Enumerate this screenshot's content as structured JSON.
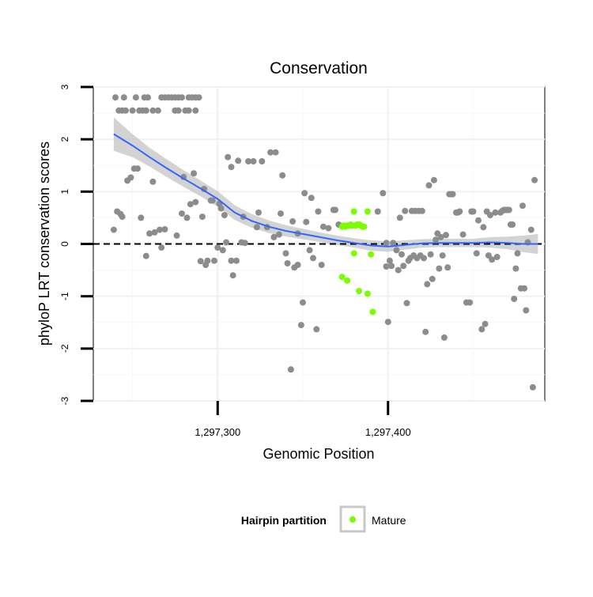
{
  "chart_data": {
    "type": "scatter",
    "title": "Conservation",
    "xlabel": "Genomic Position",
    "ylabel": "phyloP LRT conservation scores",
    "xlim": [
      1297227,
      1297492
    ],
    "ylim": [
      -3,
      3
    ],
    "x_ticks": [
      {
        "value": 1297300,
        "label": "1,297,300"
      },
      {
        "value": 1297400,
        "label": "1,297,400"
      }
    ],
    "y_ticks": [
      {
        "value": -3,
        "label": "-3"
      },
      {
        "value": -2,
        "label": "-2"
      },
      {
        "value": -1,
        "label": "-1"
      },
      {
        "value": 0,
        "label": "0"
      },
      {
        "value": 1,
        "label": "1"
      },
      {
        "value": 2,
        "label": "2"
      },
      {
        "value": 3,
        "label": "3"
      }
    ],
    "grid": true,
    "reference_line": {
      "y": 0,
      "style": "dashed"
    },
    "legend": {
      "title": "Hairpin partition",
      "position": "bottom",
      "entries": [
        {
          "label": "Mature",
          "color": "#7cfc00"
        }
      ]
    },
    "colors": {
      "other": "#8c8c8c",
      "mature": "#7cfc00",
      "smooth": "#3366ff",
      "band": "#c8c8c8"
    },
    "series": [
      {
        "name": "",
        "color": "#8c8c8c",
        "points": [
          [
            1297240,
            2.8
          ],
          [
            1297245,
            2.8
          ],
          [
            1297252,
            2.8
          ],
          [
            1297257,
            2.8
          ],
          [
            1297259,
            2.8
          ],
          [
            1297267,
            2.8
          ],
          [
            1297269,
            2.8
          ],
          [
            1297271,
            2.8
          ],
          [
            1297273,
            2.8
          ],
          [
            1297275,
            2.8
          ],
          [
            1297277,
            2.8
          ],
          [
            1297279,
            2.8
          ],
          [
            1297283,
            2.8
          ],
          [
            1297285,
            2.8
          ],
          [
            1297287,
            2.8
          ],
          [
            1297289,
            2.8
          ],
          [
            1297242,
            2.55
          ],
          [
            1297244,
            2.55
          ],
          [
            1297246,
            2.55
          ],
          [
            1297250,
            2.55
          ],
          [
            1297254,
            2.55
          ],
          [
            1297256,
            2.55
          ],
          [
            1297258,
            2.55
          ],
          [
            1297262,
            2.55
          ],
          [
            1297265,
            2.55
          ],
          [
            1297275,
            2.55
          ],
          [
            1297277,
            2.55
          ],
          [
            1297281,
            2.55
          ],
          [
            1297283,
            2.55
          ],
          [
            1297287,
            2.55
          ],
          [
            1297239,
            0.27
          ],
          [
            1297241,
            0.62
          ],
          [
            1297243,
            0.57
          ],
          [
            1297244,
            0.52
          ],
          [
            1297247,
            1.21
          ],
          [
            1297249,
            1.27
          ],
          [
            1297251,
            1.44
          ],
          [
            1297253,
            1.44
          ],
          [
            1297255,
            0.5
          ],
          [
            1297258,
            -0.23
          ],
          [
            1297260,
            0.2
          ],
          [
            1297262,
            1.19
          ],
          [
            1297263,
            0.22
          ],
          [
            1297266,
            0.27
          ],
          [
            1297267,
            -0.07
          ],
          [
            1297269,
            0.28
          ],
          [
            1297276,
            0.16
          ],
          [
            1297279,
            0.58
          ],
          [
            1297280,
            1.28
          ],
          [
            1297282,
            0.5
          ],
          [
            1297284,
            0.76
          ],
          [
            1297286,
            1.35
          ],
          [
            1297287,
            0.8
          ],
          [
            1297290,
            -0.33
          ],
          [
            1297291,
            0.52
          ],
          [
            1297292,
            1.05
          ],
          [
            1297293,
            -0.4
          ],
          [
            1297294,
            -0.32
          ],
          [
            1297296,
            0.83
          ],
          [
            1297297,
            0.83
          ],
          [
            1297298,
            -0.32
          ],
          [
            1297300,
            -0.07
          ],
          [
            1297301,
            0.77
          ],
          [
            1297302,
            0.68
          ],
          [
            1297303,
            -0.12
          ],
          [
            1297304,
            0.55
          ],
          [
            1297305,
            0.03
          ],
          [
            1297306,
            1.66
          ],
          [
            1297308,
            -0.32
          ],
          [
            1297308,
            1.47
          ],
          [
            1297309,
            -0.6
          ],
          [
            1297311,
            -0.32
          ],
          [
            1297312,
            1.59
          ],
          [
            1297314,
            0.03
          ],
          [
            1297315,
            0.52
          ],
          [
            1297316,
            0.02
          ],
          [
            1297318,
            1.58
          ],
          [
            1297321,
            1.58
          ],
          [
            1297323,
            0.32
          ],
          [
            1297324,
            0.6
          ],
          [
            1297326,
            1.58
          ],
          [
            1297329,
            0.32
          ],
          [
            1297331,
            1.75
          ],
          [
            1297333,
            0.13
          ],
          [
            1297334,
            1.75
          ],
          [
            1297336,
            0.18
          ],
          [
            1297337,
            0.58
          ],
          [
            1297338,
            1.31
          ],
          [
            1297340,
            -0.18
          ],
          [
            1297341,
            -0.37
          ],
          [
            1297343,
            -2.4
          ],
          [
            1297344,
            0.43
          ],
          [
            1297345,
            -0.45
          ],
          [
            1297347,
            -0.4
          ],
          [
            1297347,
            0.2
          ],
          [
            1297349,
            -1.55
          ],
          [
            1297350,
            -1.12
          ],
          [
            1297351,
            0.97
          ],
          [
            1297352,
            0.42
          ],
          [
            1297354,
            -0.12
          ],
          [
            1297355,
            0.88
          ],
          [
            1297356,
            -0.27
          ],
          [
            1297358,
            -1.63
          ],
          [
            1297359,
            0.62
          ],
          [
            1297361,
            -0.4
          ],
          [
            1297362,
            0.33
          ],
          [
            1297365,
            0.3
          ],
          [
            1297368,
            0.65
          ],
          [
            1297369,
            0.65
          ],
          [
            1297371,
            0.37
          ],
          [
            1297394,
            0.62
          ],
          [
            1297397,
            0.97
          ],
          [
            1297399,
            0.02
          ],
          [
            1297399,
            -0.43
          ],
          [
            1297400,
            -1.49
          ],
          [
            1297401,
            -0.32
          ],
          [
            1297402,
            -0.42
          ],
          [
            1297403,
            0.02
          ],
          [
            1297405,
            -0.12
          ],
          [
            1297406,
            -0.5
          ],
          [
            1297407,
            0.5
          ],
          [
            1297408,
            -0.2
          ],
          [
            1297409,
            -0.42
          ],
          [
            1297410,
            0.63
          ],
          [
            1297411,
            -1.13
          ],
          [
            1297412,
            -0.32
          ],
          [
            1297413,
            -0.27
          ],
          [
            1297414,
            0.63
          ],
          [
            1297415,
            -0.22
          ],
          [
            1297416,
            0.63
          ],
          [
            1297417,
            -0.27
          ],
          [
            1297418,
            0.63
          ],
          [
            1297419,
            -0.22
          ],
          [
            1297420,
            0.63
          ],
          [
            1297421,
            -0.27
          ],
          [
            1297422,
            -1.68
          ],
          [
            1297423,
            -0.77
          ],
          [
            1297424,
            1.12
          ],
          [
            1297425,
            -0.2
          ],
          [
            1297426,
            -0.67
          ],
          [
            1297427,
            1.22
          ],
          [
            1297428,
            0.08
          ],
          [
            1297429,
            0.2
          ],
          [
            1297430,
            -0.47
          ],
          [
            1297431,
            0.13
          ],
          [
            1297432,
            -0.22
          ],
          [
            1297433,
            -1.79
          ],
          [
            1297434,
            0.17
          ],
          [
            1297435,
            -0.45
          ],
          [
            1297436,
            0.95
          ],
          [
            1297437,
            0.95
          ],
          [
            1297438,
            0.95
          ],
          [
            1297440,
            0.6
          ],
          [
            1297441,
            0.6
          ],
          [
            1297442,
            0.62
          ],
          [
            1297444,
            0.18
          ],
          [
            1297446,
            -1.12
          ],
          [
            1297448,
            -1.12
          ],
          [
            1297449,
            0.62
          ],
          [
            1297450,
            0.62
          ],
          [
            1297452,
            -0.18
          ],
          [
            1297453,
            0.45
          ],
          [
            1297455,
            -1.63
          ],
          [
            1297456,
            0.32
          ],
          [
            1297457,
            -1.53
          ],
          [
            1297458,
            0.62
          ],
          [
            1297459,
            -0.22
          ],
          [
            1297460,
            0.55
          ],
          [
            1297461,
            -0.3
          ],
          [
            1297463,
            0.6
          ],
          [
            1297464,
            -0.25
          ],
          [
            1297466,
            0.6
          ],
          [
            1297467,
            0.63
          ],
          [
            1297468,
            0.65
          ],
          [
            1297469,
            0.65
          ],
          [
            1297470,
            0.65
          ],
          [
            1297471,
            0.65
          ],
          [
            1297472,
            0.37
          ],
          [
            1297473,
            0.37
          ],
          [
            1297474,
            -1.05
          ],
          [
            1297475,
            -0.47
          ],
          [
            1297476,
            -0.18
          ],
          [
            1297478,
            -0.85
          ],
          [
            1297479,
            0.73
          ],
          [
            1297480,
            -0.85
          ],
          [
            1297481,
            -1.27
          ],
          [
            1297482,
            0.03
          ],
          [
            1297484,
            0.27
          ],
          [
            1297485,
            -2.74
          ],
          [
            1297486,
            1.22
          ]
        ]
      },
      {
        "name": "Mature",
        "color": "#7cfc00",
        "points": [
          [
            1297373,
            0.33
          ],
          [
            1297374,
            0.35
          ],
          [
            1297375,
            0.33
          ],
          [
            1297376,
            0.35
          ],
          [
            1297377,
            0.35
          ],
          [
            1297378,
            0.37
          ],
          [
            1297379,
            0.35
          ],
          [
            1297380,
            0.62
          ],
          [
            1297381,
            0.35
          ],
          [
            1297382,
            0.37
          ],
          [
            1297383,
            0.37
          ],
          [
            1297384,
            0.35
          ],
          [
            1297385,
            0.33
          ],
          [
            1297386,
            0.33
          ],
          [
            1297388,
            0.62
          ],
          [
            1297373,
            -0.63
          ],
          [
            1297376,
            -0.7
          ],
          [
            1297380,
            -0.18
          ],
          [
            1297383,
            -0.9
          ],
          [
            1297388,
            -0.95
          ],
          [
            1297390,
            -0.2
          ],
          [
            1297391,
            -1.3
          ]
        ]
      }
    ],
    "smooth": {
      "method": "loess",
      "color": "#3366ff",
      "points": [
        [
          1297239,
          2.1
        ],
        [
          1297250,
          1.88
        ],
        [
          1297260,
          1.66
        ],
        [
          1297270,
          1.45
        ],
        [
          1297280,
          1.25
        ],
        [
          1297290,
          1.06
        ],
        [
          1297300,
          0.86
        ],
        [
          1297310,
          0.6
        ],
        [
          1297320,
          0.44
        ],
        [
          1297330,
          0.33
        ],
        [
          1297340,
          0.25
        ],
        [
          1297350,
          0.19
        ],
        [
          1297360,
          0.13
        ],
        [
          1297370,
          0.07
        ],
        [
          1297380,
          0.02
        ],
        [
          1297390,
          -0.03
        ],
        [
          1297400,
          -0.05
        ],
        [
          1297410,
          -0.02
        ],
        [
          1297420,
          0.01
        ],
        [
          1297430,
          0.02
        ],
        [
          1297440,
          0.02
        ],
        [
          1297450,
          0.02
        ],
        [
          1297460,
          0.03
        ],
        [
          1297470,
          0.02
        ],
        [
          1297480,
          0.0
        ],
        [
          1297488,
          0.0
        ]
      ],
      "band_halfwidth": [
        0.32,
        0.22,
        0.18,
        0.17,
        0.16,
        0.15,
        0.15,
        0.14,
        0.13,
        0.12,
        0.11,
        0.1,
        0.09,
        0.09,
        0.09,
        0.1,
        0.1,
        0.09,
        0.08,
        0.08,
        0.08,
        0.08,
        0.1,
        0.12,
        0.16,
        0.19
      ]
    }
  }
}
